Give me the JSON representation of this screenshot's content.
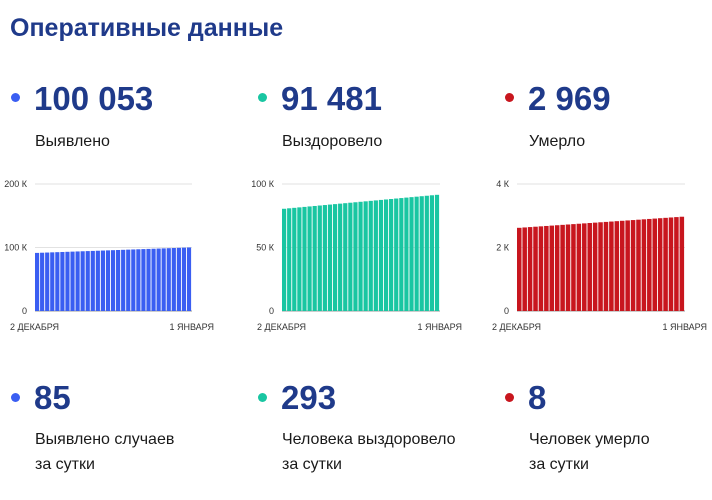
{
  "header": {
    "title": "Оперативные данные"
  },
  "stats": [
    {
      "value": "100 053",
      "label": "Выявлено",
      "color": "#3a5ef2",
      "daily_value": "85",
      "daily_label_line1": "Выявлено случаев",
      "daily_label_line2": "за сутки"
    },
    {
      "value": "91 481",
      "label": "Выздоровело",
      "color": "#19c6a2",
      "daily_value": "293",
      "daily_label_line1": "Человека выздоровело",
      "daily_label_line2": "за сутки"
    },
    {
      "value": "2 969",
      "label": "Умерло",
      "color": "#c8161e",
      "daily_value": "8",
      "daily_label_line1": "Человек умерло",
      "daily_label_line2": "за сутки"
    }
  ],
  "chart_data": [
    {
      "type": "bar",
      "y_ticks": [
        0,
        100000,
        200000
      ],
      "y_tick_labels": [
        "0",
        "100 К",
        "200 К"
      ],
      "ylim": [
        0,
        200000
      ],
      "x_labels": [
        "2 ДЕКАБРЯ",
        "1 ЯНВАРЯ"
      ],
      "start_value": 91500,
      "end_value": 100053,
      "bar_count": 31,
      "color": "#3a5ef2",
      "grid": true
    },
    {
      "type": "bar",
      "y_ticks": [
        0,
        50000,
        100000
      ],
      "y_tick_labels": [
        "0",
        "50 К",
        "100 К"
      ],
      "ylim": [
        0,
        100000
      ],
      "x_labels": [
        "2 ДЕКАБРЯ",
        "1 ЯНВАРЯ"
      ],
      "start_value": 80500,
      "end_value": 91481,
      "bar_count": 31,
      "color": "#19c6a2",
      "grid": true
    },
    {
      "type": "bar",
      "y_ticks": [
        0,
        2000,
        4000
      ],
      "y_tick_labels": [
        "0",
        "2 К",
        "4 К"
      ],
      "ylim": [
        0,
        4000
      ],
      "x_labels": [
        "2 ДЕКАБРЯ",
        "1 ЯНВАРЯ"
      ],
      "start_value": 2620,
      "end_value": 2969,
      "bar_count": 31,
      "color": "#c8161e",
      "grid": true
    }
  ]
}
